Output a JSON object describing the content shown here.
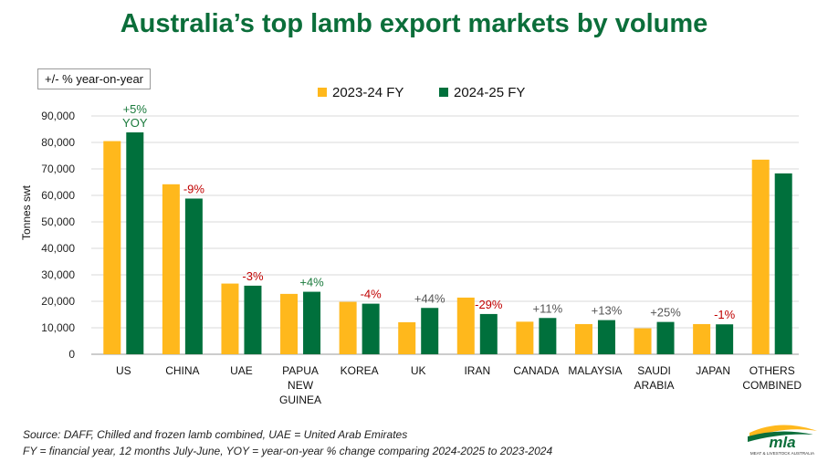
{
  "title": "Australia’s top lamb export markets by volume",
  "yoy_note": "+/- % year-on-year",
  "colors": {
    "series_2023": "#ffb81c",
    "series_2024": "#00703c",
    "title": "#0b6e3a",
    "positive": "#1a7a3c",
    "negative": "#c00000",
    "neutral": "#555555"
  },
  "chart_data": {
    "type": "bar",
    "ylabel": "Tonnes swt",
    "ylim": [
      0,
      90000
    ],
    "yticks": [
      0,
      10000,
      20000,
      30000,
      40000,
      50000,
      60000,
      70000,
      80000,
      90000
    ],
    "ytick_labels": [
      "0",
      "10,000",
      "20,000",
      "30,000",
      "40,000",
      "50,000",
      "60,000",
      "70,000",
      "80,000",
      "90,000"
    ],
    "grid": true,
    "legend_position": "top",
    "categories": [
      [
        "US"
      ],
      [
        "CHINA"
      ],
      [
        "UAE"
      ],
      [
        "PAPUA",
        "NEW",
        "GUINEA"
      ],
      [
        "KOREA"
      ],
      [
        "UK"
      ],
      [
        "IRAN"
      ],
      [
        "CANADA"
      ],
      [
        "MALAYSIA"
      ],
      [
        "SAUDI",
        "ARABIA"
      ],
      [
        "JAPAN"
      ],
      [
        "OTHERS",
        "COMBINED"
      ]
    ],
    "series": [
      {
        "name": "2023-24 FY",
        "values": [
          80500,
          64200,
          26700,
          22800,
          19800,
          12100,
          21400,
          12300,
          11400,
          9800,
          11400,
          73500
        ]
      },
      {
        "name": "2024-25 FY",
        "values": [
          83800,
          58800,
          25900,
          23600,
          19100,
          17500,
          15200,
          13700,
          12900,
          12200,
          11300,
          68300
        ]
      }
    ],
    "yoy_labels": [
      {
        "lines": [
          "+5%",
          "YOY"
        ],
        "tone": "positive"
      },
      {
        "lines": [
          "-9%"
        ],
        "tone": "negative"
      },
      {
        "lines": [
          "-3%"
        ],
        "tone": "negative"
      },
      {
        "lines": [
          "+4%"
        ],
        "tone": "positive"
      },
      {
        "lines": [
          "-4%"
        ],
        "tone": "negative"
      },
      {
        "lines": [
          "+44%"
        ],
        "tone": "neutral"
      },
      {
        "lines": [
          "-29%"
        ],
        "tone": "negative"
      },
      {
        "lines": [
          "+11%"
        ],
        "tone": "neutral"
      },
      {
        "lines": [
          "+13%"
        ],
        "tone": "neutral"
      },
      {
        "lines": [
          "+25%"
        ],
        "tone": "neutral"
      },
      {
        "lines": [
          "-1%"
        ],
        "tone": "negative"
      },
      {
        "lines": [],
        "tone": "neutral"
      }
    ]
  },
  "footer": {
    "line1": "Source: DAFF, Chilled and frozen lamb combined, UAE = United Arab Emirates",
    "line2": "FY = financial year, 12 months July-June, YOY = year-on-year % change comparing 2024-2025 to 2023-2024"
  },
  "logo": {
    "name": "mla",
    "subtitle": "MEAT & LIVESTOCK AUSTRALIA"
  }
}
